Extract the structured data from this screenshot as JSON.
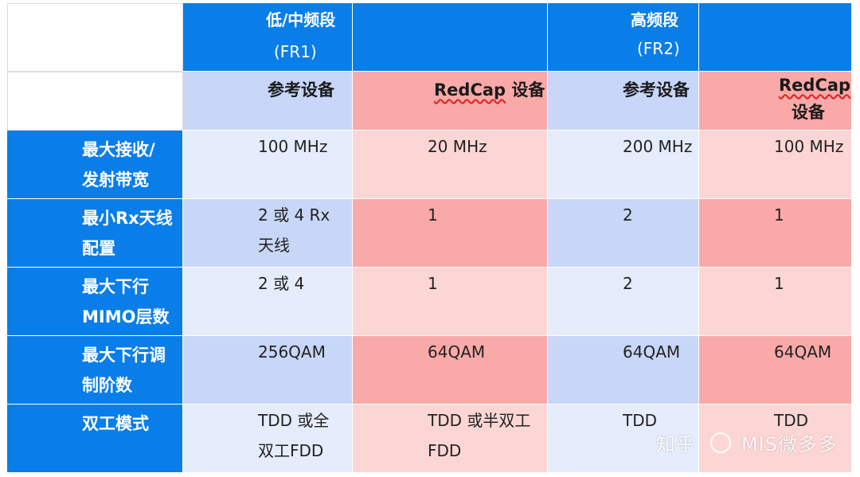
{
  "header": {
    "fr1_title": "低/中频段",
    "fr1_sub": "(FR1)",
    "fr2_title": "高频段",
    "fr2_sub": "(FR2)"
  },
  "subheader": {
    "fr1_ref": "参考设备",
    "fr1_redcap_a": "RedCap",
    "fr1_redcap_b": " 设备",
    "fr2_ref": "参考设备",
    "fr2_redcap_a": "RedCap",
    "fr2_redcap_b": "设备"
  },
  "rows": [
    {
      "label_l1": "最大接收/",
      "label_l2": "发射带宽",
      "fr1_ref_l1": "100 MHz",
      "fr1_ref_l2": "",
      "fr1_red_l1": "20 MHz",
      "fr1_red_l2": "",
      "fr2_ref_l1": "200 MHz",
      "fr2_ref_l2": "",
      "fr2_red_l1": "100 MHz",
      "fr2_red_l2": ""
    },
    {
      "label_l1": "最小Rx天线",
      "label_l2": "配置",
      "fr1_ref_l1": "2 或 4 Rx",
      "fr1_ref_l2": "天线",
      "fr1_red_l1": "1",
      "fr1_red_l2": "",
      "fr2_ref_l1": "2",
      "fr2_ref_l2": "",
      "fr2_red_l1": "1",
      "fr2_red_l2": ""
    },
    {
      "label_l1": "最大下行",
      "label_l2": "MIMO层数",
      "fr1_ref_l1": "2 或 4",
      "fr1_ref_l2": "",
      "fr1_red_l1": "1",
      "fr1_red_l2": "",
      "fr2_ref_l1": "2",
      "fr2_ref_l2": "",
      "fr2_red_l1": "1",
      "fr2_red_l2": ""
    },
    {
      "label_l1": "最大下行调",
      "label_l2": "制阶数",
      "fr1_ref_l1": "256QAM",
      "fr1_ref_l2": "",
      "fr1_red_l1": "64QAM",
      "fr1_red_l2": "",
      "fr2_ref_l1": "64QAM",
      "fr2_ref_l2": "",
      "fr2_red_l1": "64QAM",
      "fr2_red_l2": ""
    },
    {
      "label_l1": "双工模式",
      "label_l2": "",
      "fr1_ref_l1": "TDD 或全",
      "fr1_ref_l2": "双工FDD",
      "fr1_red_l1": "TDD 或半双工",
      "fr1_red_l2": "FDD",
      "fr2_ref_l1": "TDD",
      "fr2_ref_l2": "",
      "fr2_red_l1": "TDD",
      "fr2_red_l2": ""
    }
  ],
  "watermark": {
    "site": "知乎",
    "author": "MIS微多多"
  }
}
